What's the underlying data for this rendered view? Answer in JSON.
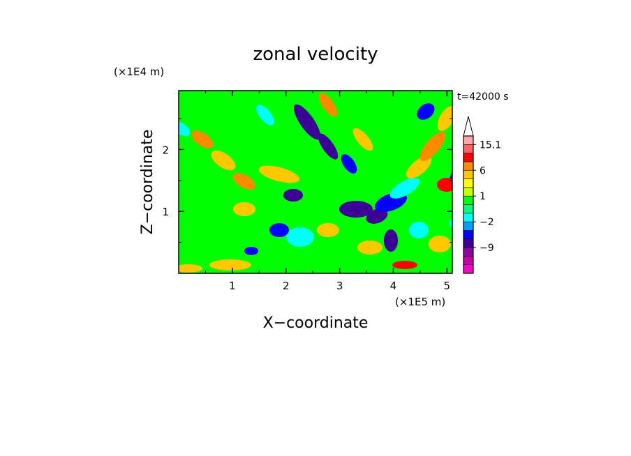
{
  "chart_data": {
    "type": "heatmap",
    "title": "zonal velocity",
    "xlabel": "X−coordinate",
    "ylabel": "Z−coordinate",
    "x_unit_label": "(×1E5 m)",
    "y_unit_label": "(×1E4 m)",
    "time_label": "t=42000 s",
    "xlim": [
      0,
      5.1
    ],
    "ylim": [
      0,
      2.95
    ],
    "x_ticks": [
      1,
      2,
      3,
      4,
      5
    ],
    "y_ticks": [
      1,
      2
    ],
    "colorbar": {
      "levels": [
        -15,
        -12,
        -9,
        -6,
        -4,
        -2,
        -1,
        0,
        1,
        2,
        4,
        6,
        9,
        12,
        15.1
      ],
      "colors": [
        "#ff00c8",
        "#c800a8",
        "#8c00a0",
        "#3c0096",
        "#0000ff",
        "#00a0ff",
        "#00ffff",
        "#00ff7f",
        "#00ff00",
        "#c8ff00",
        "#ffff00",
        "#ffc800",
        "#ff8c00",
        "#ff0000",
        "#ff6464",
        "#ffaaaa"
      ],
      "tick_labels": [
        "15.1",
        "6",
        "1",
        "−2",
        "−9"
      ],
      "tick_values": [
        15.1,
        6,
        1,
        -2,
        -9
      ],
      "extend": "max"
    }
  }
}
